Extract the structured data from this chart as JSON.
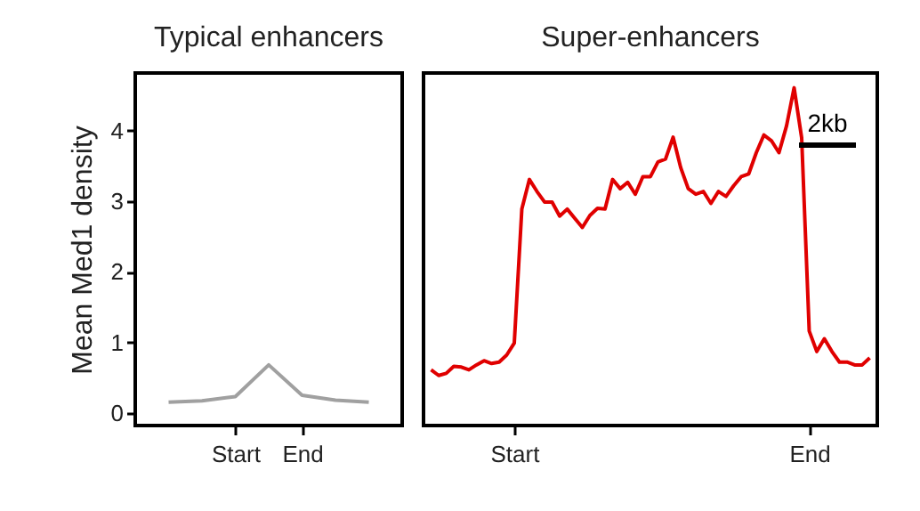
{
  "chart_data": [
    {
      "type": "line",
      "title": "Typical enhancers",
      "ylabel": "Mean Med1 density",
      "categories": [
        null,
        null,
        "Start",
        null,
        "End",
        null,
        null
      ],
      "ylim": [
        -0.18,
        4.82
      ],
      "yticks": [
        0,
        1,
        2,
        3,
        4
      ],
      "grid": false,
      "series": [
        {
          "color": "#a0a0a0",
          "values": [
            0.15,
            0.17,
            0.23,
            0.68,
            0.25,
            0.18,
            0.15
          ]
        }
      ]
    },
    {
      "type": "line",
      "title": "Super-enhancers",
      "categories": [
        null,
        null,
        null,
        null,
        null,
        null,
        null,
        null,
        null,
        null,
        null,
        "Start",
        null,
        null,
        null,
        null,
        null,
        null,
        null,
        null,
        null,
        null,
        null,
        null,
        null,
        null,
        null,
        null,
        null,
        null,
        null,
        null,
        null,
        null,
        null,
        null,
        null,
        null,
        null,
        null,
        null,
        null,
        null,
        null,
        null,
        null,
        null,
        null,
        null,
        null,
        "End",
        null,
        null,
        null,
        null,
        null,
        null,
        null,
        null
      ],
      "ylim": [
        -0.18,
        4.82
      ],
      "yticks": [
        0,
        1,
        2,
        3,
        4
      ],
      "tick_labels": "x",
      "grid": false,
      "annotations": [
        "2kb"
      ],
      "series": [
        {
          "color": "#e00000",
          "values": [
            0.61,
            0.53,
            0.56,
            0.66,
            0.65,
            0.61,
            0.68,
            0.74,
            0.7,
            0.72,
            0.82,
            0.99,
            2.89,
            3.31,
            3.14,
            2.99,
            2.99,
            2.79,
            2.89,
            2.76,
            2.63,
            2.8,
            2.9,
            2.89,
            3.31,
            3.18,
            3.27,
            3.1,
            3.35,
            3.35,
            3.56,
            3.6,
            3.91,
            3.48,
            3.18,
            3.1,
            3.14,
            2.97,
            3.14,
            3.07,
            3.22,
            3.35,
            3.39,
            3.69,
            3.94,
            3.86,
            3.69,
            4.07,
            4.61,
            3.9,
            1.16,
            0.87,
            1.05,
            0.87,
            0.72,
            0.72,
            0.68,
            0.68,
            0.78
          ]
        }
      ]
    }
  ]
}
